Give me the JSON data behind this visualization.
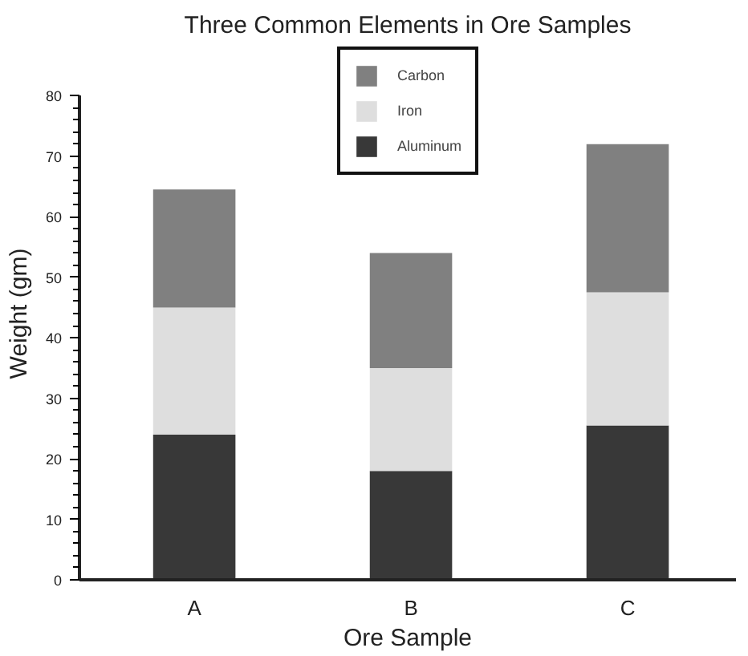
{
  "chart_data": {
    "type": "bar",
    "title": "Three Common Elements in Ore Samples",
    "xlabel": "Ore Sample",
    "ylabel": "Weight (gm)",
    "categories": [
      "A",
      "B",
      "C"
    ],
    "stacked": true,
    "series": [
      {
        "name": "Aluminum",
        "color": "#383838",
        "values": [
          24,
          18,
          25.5
        ]
      },
      {
        "name": "Iron",
        "color": "#dedede",
        "values": [
          21,
          17,
          22
        ]
      },
      {
        "name": "Carbon",
        "color": "#808080",
        "values": [
          19.5,
          19,
          24.5
        ]
      }
    ],
    "ylim": [
      0,
      80
    ],
    "yticks": [
      0,
      10,
      20,
      30,
      40,
      50,
      60,
      70,
      80
    ],
    "grid": false,
    "legend": "top"
  }
}
